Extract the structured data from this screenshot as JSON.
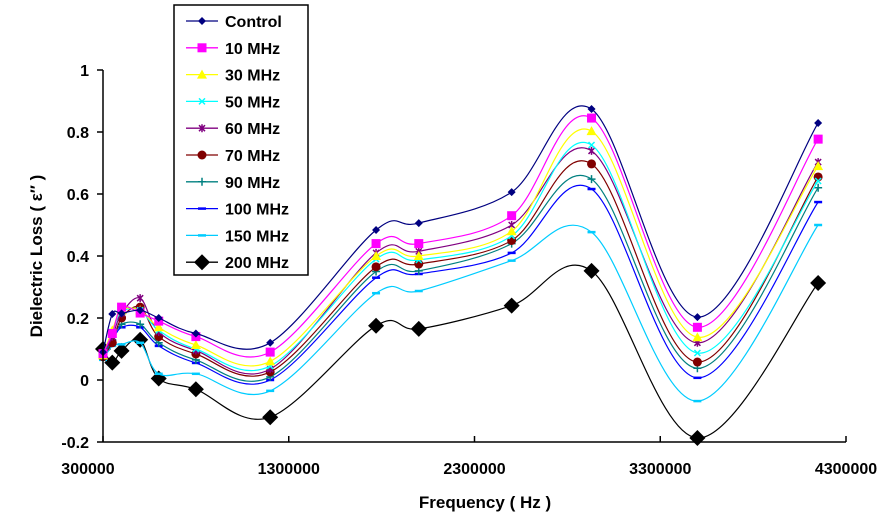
{
  "chart_data": {
    "type": "line",
    "title": "",
    "xlabel": "Frequency ( Hz )",
    "ylabel": "Dielectric Loss ( ε″ )",
    "xlim": [
      300000,
      4300000
    ],
    "ylim": [
      -0.2,
      1
    ],
    "x_ticks": [
      300000,
      1300000,
      2300000,
      3300000,
      4300000
    ],
    "x_tick_labels": [
      "300000",
      "1300000",
      "2300000",
      "3300000",
      "4300000"
    ],
    "y_ticks": [
      -0.2,
      0,
      0.2,
      0.4,
      0.6,
      0.8,
      1
    ],
    "y_tick_labels": [
      "-0.2",
      "0",
      "0.2",
      "0.4",
      "0.6",
      "0.8",
      "1"
    ],
    "grid": false,
    "legend_position": "top-left",
    "x": [
      300000,
      350000,
      400000,
      500000,
      600000,
      800000,
      1200000,
      1770000,
      2000000,
      2500000,
      2930000,
      3500000,
      4150000
    ],
    "series": [
      {
        "name": "Control",
        "color": "#000080",
        "marker": "diamond-small",
        "values": [
          0.09,
          0.213,
          0.215,
          0.225,
          0.2,
          0.15,
          0.12,
          0.484,
          0.506,
          0.606,
          0.874,
          0.203,
          0.829
        ]
      },
      {
        "name": "10 MHz",
        "color": "#FF00FF",
        "marker": "square",
        "values": [
          0.085,
          0.15,
          0.235,
          0.216,
          0.19,
          0.14,
          0.09,
          0.44,
          0.44,
          0.53,
          0.845,
          0.17,
          0.777
        ]
      },
      {
        "name": "30 MHz",
        "color": "#FFFF00",
        "marker": "triangle",
        "values": [
          0.08,
          0.16,
          0.225,
          0.225,
          0.17,
          0.113,
          0.06,
          0.4,
          0.4,
          0.48,
          0.803,
          0.138,
          0.69
        ]
      },
      {
        "name": "50 MHz",
        "color": "#00FFFF",
        "marker": "x",
        "values": [
          0.08,
          0.155,
          0.22,
          0.225,
          0.16,
          0.1,
          0.045,
          0.39,
          0.387,
          0.465,
          0.758,
          0.087,
          0.642
        ]
      },
      {
        "name": "60 MHz",
        "color": "#800080",
        "marker": "star",
        "values": [
          0.08,
          0.14,
          0.215,
          0.264,
          0.155,
          0.095,
          0.035,
          0.41,
          0.415,
          0.5,
          0.739,
          0.12,
          0.703
        ]
      },
      {
        "name": "70 MHz",
        "color": "#800000",
        "marker": "circle",
        "values": [
          0.075,
          0.12,
          0.2,
          0.235,
          0.14,
          0.084,
          0.026,
          0.365,
          0.374,
          0.45,
          0.697,
          0.058,
          0.655
        ]
      },
      {
        "name": "90 MHz",
        "color": "#008080",
        "marker": "plus",
        "values": [
          0.075,
          0.13,
          0.18,
          0.18,
          0.12,
          0.065,
          0.01,
          0.35,
          0.352,
          0.44,
          0.648,
          0.038,
          0.62
        ]
      },
      {
        "name": "100 MHz",
        "color": "#0000FF",
        "marker": "dash",
        "values": [
          0.07,
          0.125,
          0.17,
          0.17,
          0.11,
          0.055,
          0.0,
          0.33,
          0.342,
          0.41,
          0.616,
          0.007,
          0.574
        ]
      },
      {
        "name": "150 MHz",
        "color": "#00CCFF",
        "marker": "dash",
        "values": [
          0.065,
          0.11,
          0.115,
          0.12,
          0.02,
          0.02,
          -0.035,
          0.28,
          0.287,
          0.385,
          0.477,
          -0.068,
          0.5
        ]
      },
      {
        "name": "200 MHz",
        "color": "#000000",
        "marker": "diamond-large",
        "values": [
          0.1,
          0.056,
          0.094,
          0.13,
          0.005,
          -0.03,
          -0.12,
          0.175,
          0.165,
          0.24,
          0.352,
          -0.187,
          0.313
        ]
      }
    ]
  }
}
